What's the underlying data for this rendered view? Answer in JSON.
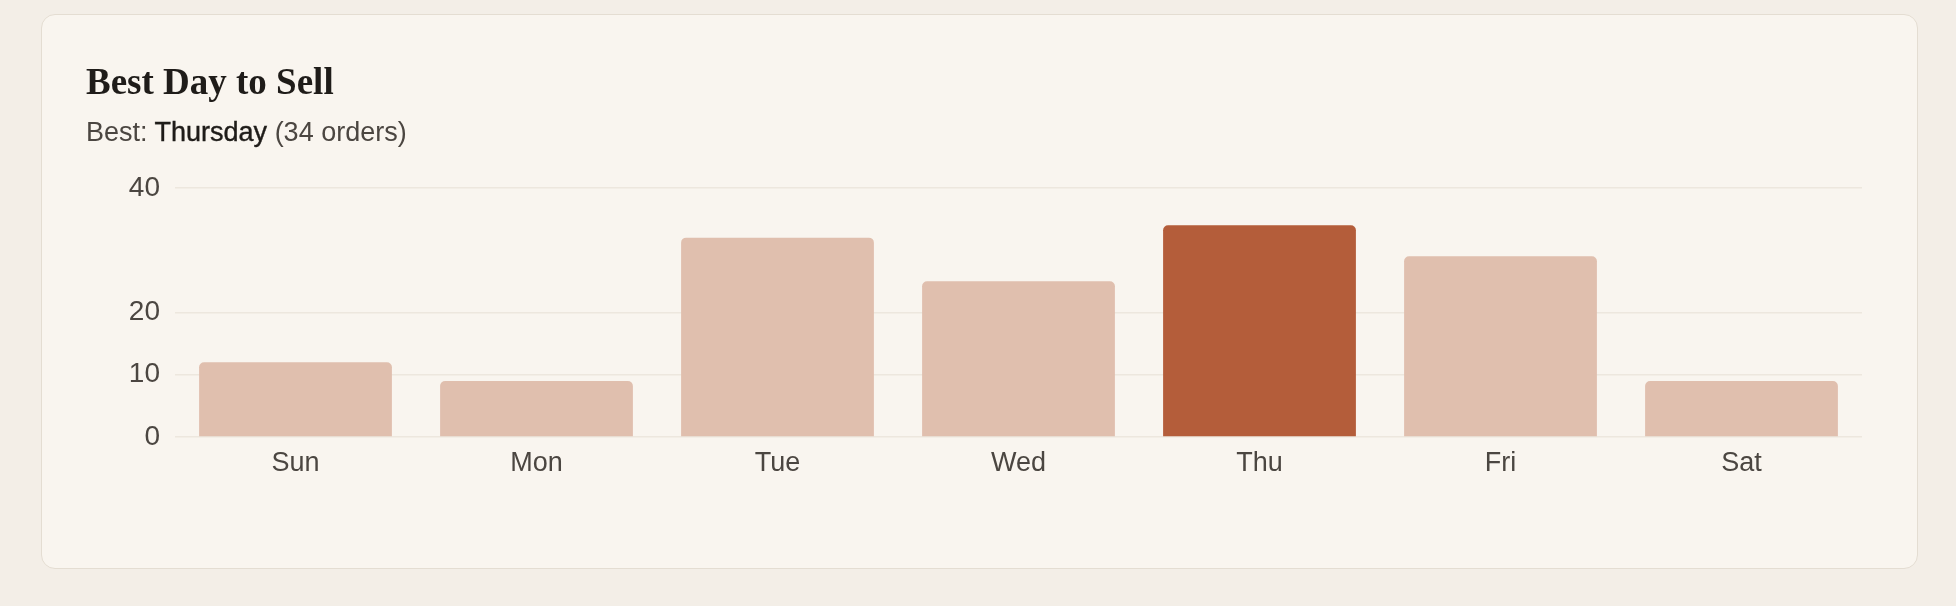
{
  "chart_data": {
    "type": "bar",
    "title": "Best Day to Sell",
    "subtitle": "Best: Thursday (34 orders)",
    "categories": [
      "Sun",
      "Mon",
      "Tue",
      "Wed",
      "Thu",
      "Fri",
      "Sat"
    ],
    "values": [
      12,
      9,
      32,
      25,
      34,
      29,
      9
    ],
    "colors": [
      "#e0bfae",
      "#e0bfae",
      "#e0bfae",
      "#e0bfae",
      "#b45d3a",
      "#e0bfae",
      "#e0bfae"
    ],
    "ylim": [
      0,
      40
    ],
    "yticks": [
      0,
      10,
      20,
      40
    ],
    "grid": "y"
  }
}
